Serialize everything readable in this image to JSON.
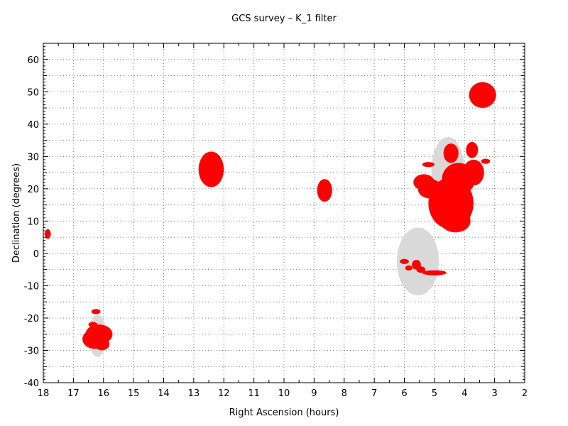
{
  "chart_data": {
    "type": "scatter",
    "title": "GCS survey – K_1 filter",
    "xlabel": "Right Ascension (hours)",
    "ylabel": "Declination (degrees)",
    "xlim": [
      18,
      2
    ],
    "ylim": [
      -40,
      65
    ],
    "x_ticks": [
      18,
      17,
      16,
      15,
      14,
      13,
      12,
      11,
      10,
      9,
      8,
      7,
      6,
      5,
      4,
      3,
      2
    ],
    "y_ticks": [
      -40,
      -30,
      -20,
      -10,
      0,
      10,
      20,
      30,
      40,
      50,
      60
    ],
    "x_minor_step": 0.5,
    "y_minor_step": 5,
    "grid": true,
    "grid_style": "dotted",
    "axis_reversed": "x",
    "colors": {
      "coverage": "#ff0000",
      "target": "#d9d9d9"
    },
    "target_regions": [
      {
        "ra": 16.2,
        "dec": -25.5,
        "ra_halfwidth": 0.3,
        "dec_halfwidth": 6.5
      },
      {
        "ra": 5.55,
        "dec": -2.5,
        "ra_halfwidth": 0.7,
        "dec_halfwidth": 10.5
      },
      {
        "ra": 4.55,
        "dec": 25.5,
        "ra_halfwidth": 0.55,
        "dec_halfwidth": 10.5
      }
    ],
    "coverage_blobs": [
      {
        "ra": 17.85,
        "dec": 6,
        "ra_halfwidth": 0.1,
        "dec_halfwidth": 1.5
      },
      {
        "ra": 16.25,
        "dec": -18,
        "ra_halfwidth": 0.15,
        "dec_halfwidth": 0.8
      },
      {
        "ra": 16.35,
        "dec": -22,
        "ra_halfwidth": 0.15,
        "dec_halfwidth": 0.8
      },
      {
        "ra": 16.15,
        "dec": -25,
        "ra_halfwidth": 0.45,
        "dec_halfwidth": 3
      },
      {
        "ra": 16.3,
        "dec": -26.5,
        "ra_halfwidth": 0.4,
        "dec_halfwidth": 3
      },
      {
        "ra": 16.05,
        "dec": -28,
        "ra_halfwidth": 0.25,
        "dec_halfwidth": 2
      },
      {
        "ra": 12.42,
        "dec": 26,
        "ra_halfwidth": 0.42,
        "dec_halfwidth": 5.5
      },
      {
        "ra": 8.65,
        "dec": 19.5,
        "ra_halfwidth": 0.25,
        "dec_halfwidth": 3.5
      },
      {
        "ra": 3.4,
        "dec": 49,
        "ra_halfwidth": 0.45,
        "dec_halfwidth": 4
      },
      {
        "ra": 4.45,
        "dec": 31,
        "ra_halfwidth": 0.25,
        "dec_halfwidth": 3
      },
      {
        "ra": 3.75,
        "dec": 32,
        "ra_halfwidth": 0.2,
        "dec_halfwidth": 2.5
      },
      {
        "ra": 5.2,
        "dec": 27.5,
        "ra_halfwidth": 0.2,
        "dec_halfwidth": 0.8
      },
      {
        "ra": 3.3,
        "dec": 28.5,
        "ra_halfwidth": 0.15,
        "dec_halfwidth": 0.8
      },
      {
        "ra": 5.35,
        "dec": 22,
        "ra_halfwidth": 0.35,
        "dec_halfwidth": 2.5
      },
      {
        "ra": 5.15,
        "dec": 20,
        "ra_halfwidth": 0.4,
        "dec_halfwidth": 3
      },
      {
        "ra": 4.2,
        "dec": 23,
        "ra_halfwidth": 0.55,
        "dec_halfwidth": 5
      },
      {
        "ra": 3.7,
        "dec": 25,
        "ra_halfwidth": 0.35,
        "dec_halfwidth": 4
      },
      {
        "ra": 4.45,
        "dec": 15.5,
        "ra_halfwidth": 0.75,
        "dec_halfwidth": 8
      },
      {
        "ra": 4.3,
        "dec": 10,
        "ra_halfwidth": 0.5,
        "dec_halfwidth": 3.5
      },
      {
        "ra": 5.6,
        "dec": -3.5,
        "ra_halfwidth": 0.15,
        "dec_halfwidth": 1.5
      },
      {
        "ra": 6.0,
        "dec": -2.5,
        "ra_halfwidth": 0.15,
        "dec_halfwidth": 0.8
      },
      {
        "ra": 5.85,
        "dec": -4.5,
        "ra_halfwidth": 0.12,
        "dec_halfwidth": 0.8
      },
      {
        "ra": 5.45,
        "dec": -5,
        "ra_halfwidth": 0.15,
        "dec_halfwidth": 1
      },
      {
        "ra": 5.0,
        "dec": -6,
        "ra_halfwidth": 0.4,
        "dec_halfwidth": 0.8
      }
    ]
  }
}
